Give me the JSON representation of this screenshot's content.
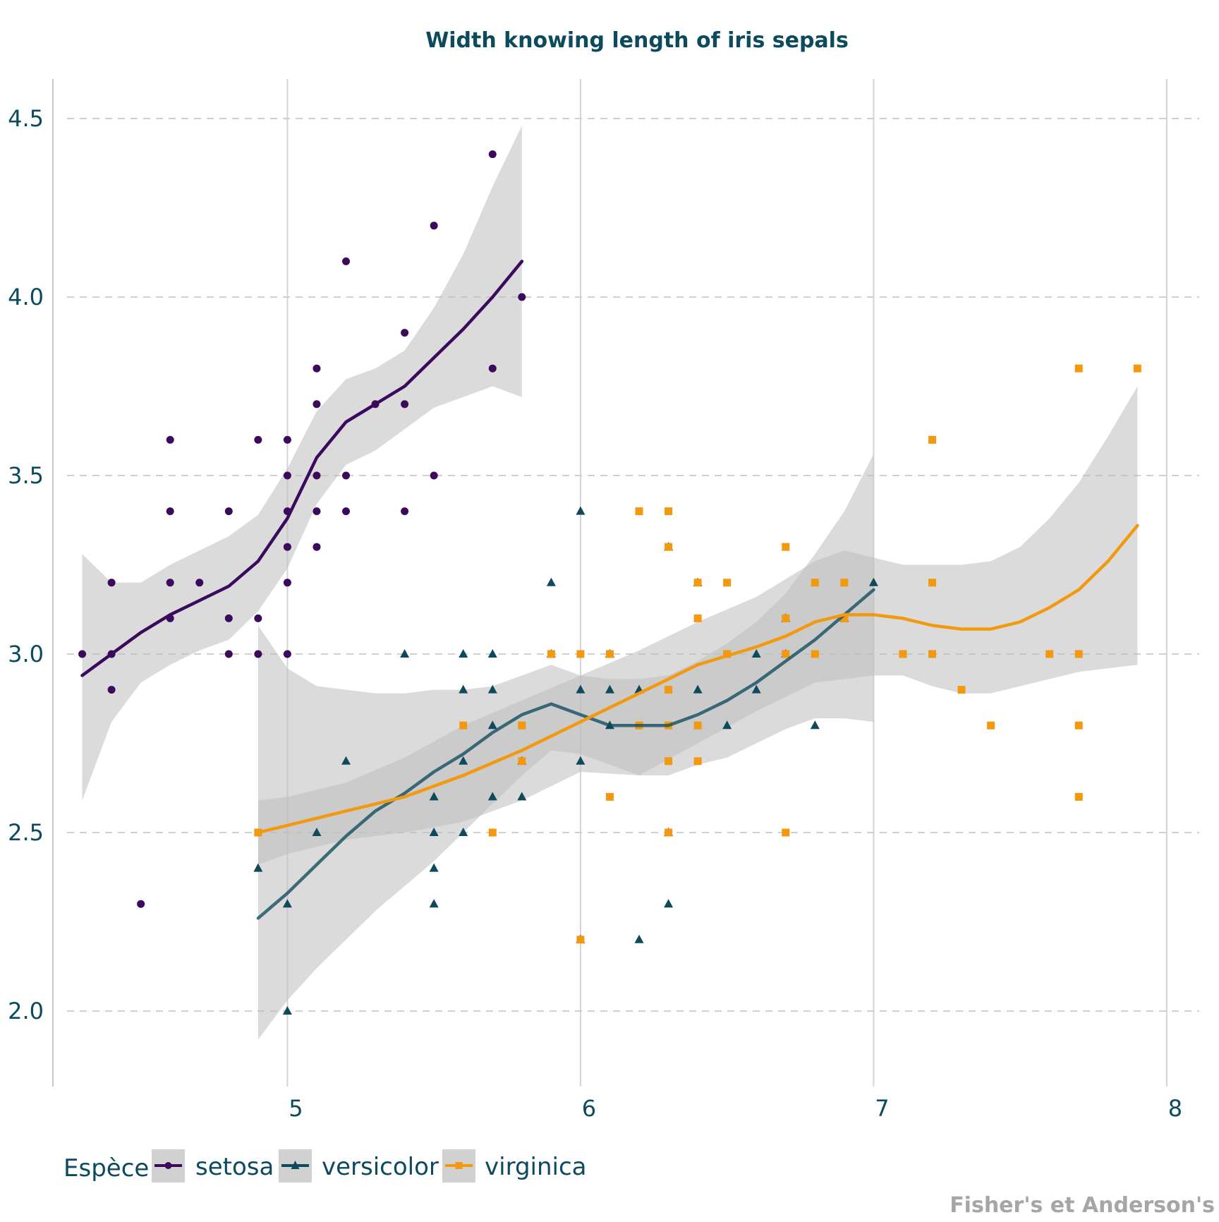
{
  "chart_data": {
    "type": "scatter",
    "title": "Width knowing length of iris sepals",
    "caption": "Fisher's et Anderson's",
    "xlabel": "",
    "ylabel": "",
    "xlim": [
      4.2,
      8.0
    ],
    "ylim": [
      1.8,
      4.6
    ],
    "x_ticks": [
      5,
      6,
      7,
      8
    ],
    "x_tick_labels": [
      "5",
      "6",
      "7",
      "8"
    ],
    "y_ticks": [
      2.0,
      2.5,
      3.0,
      3.5,
      4.0,
      4.5
    ],
    "y_tick_labels": [
      "2.0",
      "2.5",
      "3.0",
      "3.5",
      "4.0",
      "4.5"
    ],
    "grid": {
      "x": "solid",
      "y": "dashed"
    },
    "legend": {
      "title": "Espèce",
      "placement": "bottom-left",
      "entries": [
        "setosa",
        "versicolor",
        "virginica"
      ]
    },
    "colors": {
      "setosa": "#3b0a5c",
      "versicolor": "#0e4a5c",
      "virginica": "#f2990f",
      "ribbon": "#bdbdbd"
    },
    "series": [
      {
        "name": "setosa",
        "marker": "circle",
        "points": [
          [
            4.3,
            3.0
          ],
          [
            4.4,
            3.2
          ],
          [
            4.4,
            3.0
          ],
          [
            4.4,
            2.9
          ],
          [
            4.5,
            2.3
          ],
          [
            4.6,
            3.6
          ],
          [
            4.6,
            3.4
          ],
          [
            4.6,
            3.2
          ],
          [
            4.6,
            3.1
          ],
          [
            4.7,
            3.2
          ],
          [
            4.8,
            3.4
          ],
          [
            4.8,
            3.1
          ],
          [
            4.8,
            3.0
          ],
          [
            4.9,
            3.6
          ],
          [
            4.9,
            3.1
          ],
          [
            4.9,
            3.0
          ],
          [
            5.0,
            3.6
          ],
          [
            5.0,
            3.5
          ],
          [
            5.0,
            3.4
          ],
          [
            5.0,
            3.3
          ],
          [
            5.0,
            3.2
          ],
          [
            5.0,
            3.0
          ],
          [
            5.1,
            3.8
          ],
          [
            5.1,
            3.7
          ],
          [
            5.1,
            3.5
          ],
          [
            5.1,
            3.4
          ],
          [
            5.1,
            3.3
          ],
          [
            5.2,
            4.1
          ],
          [
            5.2,
            3.5
          ],
          [
            5.2,
            3.4
          ],
          [
            5.3,
            3.7
          ],
          [
            5.4,
            3.9
          ],
          [
            5.4,
            3.7
          ],
          [
            5.4,
            3.4
          ],
          [
            5.5,
            4.2
          ],
          [
            5.5,
            3.5
          ],
          [
            5.7,
            4.4
          ],
          [
            5.7,
            3.8
          ],
          [
            5.8,
            4.0
          ]
        ],
        "smooth": [
          [
            4.3,
            2.94
          ],
          [
            4.5,
            3.06
          ],
          [
            4.6,
            3.11
          ],
          [
            4.7,
            3.15
          ],
          [
            4.8,
            3.19
          ],
          [
            4.9,
            3.26
          ],
          [
            5.0,
            3.38
          ],
          [
            5.1,
            3.55
          ],
          [
            5.2,
            3.65
          ],
          [
            5.3,
            3.7
          ],
          [
            5.4,
            3.75
          ],
          [
            5.5,
            3.83
          ],
          [
            5.6,
            3.91
          ],
          [
            5.7,
            4.0
          ],
          [
            5.8,
            4.1
          ]
        ],
        "band_upper": [
          [
            4.3,
            3.28
          ],
          [
            4.4,
            3.2
          ],
          [
            4.5,
            3.2
          ],
          [
            4.6,
            3.25
          ],
          [
            4.7,
            3.29
          ],
          [
            4.8,
            3.33
          ],
          [
            4.9,
            3.39
          ],
          [
            5.0,
            3.52
          ],
          [
            5.1,
            3.68
          ],
          [
            5.2,
            3.77
          ],
          [
            5.3,
            3.8
          ],
          [
            5.4,
            3.85
          ],
          [
            5.5,
            3.97
          ],
          [
            5.6,
            4.12
          ],
          [
            5.7,
            4.31
          ],
          [
            5.8,
            4.48
          ]
        ],
        "band_lower": [
          [
            4.3,
            2.59
          ],
          [
            4.4,
            2.81
          ],
          [
            4.5,
            2.92
          ],
          [
            4.6,
            2.97
          ],
          [
            4.7,
            3.01
          ],
          [
            4.8,
            3.04
          ],
          [
            4.9,
            3.12
          ],
          [
            5.0,
            3.24
          ],
          [
            5.1,
            3.42
          ],
          [
            5.2,
            3.53
          ],
          [
            5.3,
            3.57
          ],
          [
            5.4,
            3.63
          ],
          [
            5.5,
            3.69
          ],
          [
            5.6,
            3.72
          ],
          [
            5.7,
            3.75
          ],
          [
            5.8,
            3.72
          ]
        ]
      },
      {
        "name": "versicolor",
        "marker": "triangle",
        "points": [
          [
            4.9,
            2.4
          ],
          [
            5.0,
            2.3
          ],
          [
            5.0,
            2.0
          ],
          [
            5.1,
            2.5
          ],
          [
            5.2,
            2.7
          ],
          [
            5.4,
            3.0
          ],
          [
            5.5,
            2.6
          ],
          [
            5.5,
            2.5
          ],
          [
            5.5,
            2.4
          ],
          [
            5.5,
            2.3
          ],
          [
            5.6,
            3.0
          ],
          [
            5.6,
            2.9
          ],
          [
            5.6,
            2.7
          ],
          [
            5.6,
            2.5
          ],
          [
            5.7,
            3.0
          ],
          [
            5.7,
            2.9
          ],
          [
            5.7,
            2.8
          ],
          [
            5.7,
            2.6
          ],
          [
            5.8,
            2.7
          ],
          [
            5.8,
            2.6
          ],
          [
            5.9,
            3.2
          ],
          [
            5.9,
            3.0
          ],
          [
            6.0,
            3.4
          ],
          [
            6.0,
            2.9
          ],
          [
            6.0,
            2.7
          ],
          [
            6.0,
            2.2
          ],
          [
            6.1,
            3.0
          ],
          [
            6.1,
            2.9
          ],
          [
            6.1,
            2.8
          ],
          [
            6.2,
            2.9
          ],
          [
            6.2,
            2.2
          ],
          [
            6.3,
            3.3
          ],
          [
            6.3,
            2.5
          ],
          [
            6.3,
            2.3
          ],
          [
            6.4,
            3.2
          ],
          [
            6.4,
            2.9
          ],
          [
            6.5,
            2.8
          ],
          [
            6.6,
            3.0
          ],
          [
            6.6,
            2.9
          ],
          [
            6.7,
            3.1
          ],
          [
            6.7,
            3.0
          ],
          [
            6.8,
            2.8
          ],
          [
            6.9,
            3.1
          ],
          [
            7.0,
            3.2
          ]
        ],
        "smooth": [
          [
            4.9,
            2.26
          ],
          [
            5.0,
            2.33
          ],
          [
            5.1,
            2.41
          ],
          [
            5.2,
            2.49
          ],
          [
            5.3,
            2.56
          ],
          [
            5.4,
            2.61
          ],
          [
            5.5,
            2.67
          ],
          [
            5.6,
            2.72
          ],
          [
            5.7,
            2.78
          ],
          [
            5.8,
            2.83
          ],
          [
            5.9,
            2.86
          ],
          [
            6.0,
            2.83
          ],
          [
            6.1,
            2.8
          ],
          [
            6.2,
            2.8
          ],
          [
            6.3,
            2.8
          ],
          [
            6.4,
            2.83
          ],
          [
            6.5,
            2.87
          ],
          [
            6.6,
            2.92
          ],
          [
            6.7,
            2.98
          ],
          [
            6.8,
            3.04
          ],
          [
            6.9,
            3.11
          ],
          [
            7.0,
            3.18
          ]
        ],
        "band_upper": [
          [
            4.9,
            3.08
          ],
          [
            5.0,
            2.96
          ],
          [
            5.1,
            2.91
          ],
          [
            5.2,
            2.9
          ],
          [
            5.3,
            2.89
          ],
          [
            5.4,
            2.89
          ],
          [
            5.5,
            2.9
          ],
          [
            5.6,
            2.9
          ],
          [
            5.7,
            2.91
          ],
          [
            5.8,
            2.94
          ],
          [
            5.9,
            2.97
          ],
          [
            6.0,
            2.94
          ],
          [
            6.1,
            2.93
          ],
          [
            6.2,
            2.93
          ],
          [
            6.3,
            2.94
          ],
          [
            6.4,
            2.98
          ],
          [
            6.5,
            3.03
          ],
          [
            6.6,
            3.09
          ],
          [
            6.7,
            3.17
          ],
          [
            6.8,
            3.28
          ],
          [
            6.9,
            3.4
          ],
          [
            7.0,
            3.56
          ]
        ],
        "band_lower": [
          [
            4.9,
            1.92
          ],
          [
            5.0,
            2.03
          ],
          [
            5.1,
            2.12
          ],
          [
            5.2,
            2.2
          ],
          [
            5.3,
            2.28
          ],
          [
            5.4,
            2.35
          ],
          [
            5.5,
            2.42
          ],
          [
            5.6,
            2.5
          ],
          [
            5.7,
            2.58
          ],
          [
            5.8,
            2.66
          ],
          [
            5.9,
            2.73
          ],
          [
            6.0,
            2.72
          ],
          [
            6.1,
            2.69
          ],
          [
            6.2,
            2.66
          ],
          [
            6.3,
            2.66
          ],
          [
            6.4,
            2.69
          ],
          [
            6.5,
            2.71
          ],
          [
            6.6,
            2.75
          ],
          [
            6.7,
            2.79
          ],
          [
            6.8,
            2.82
          ],
          [
            6.9,
            2.82
          ],
          [
            7.0,
            2.81
          ]
        ]
      },
      {
        "name": "virginica",
        "marker": "square",
        "points": [
          [
            4.9,
            2.5
          ],
          [
            5.6,
            2.8
          ],
          [
            5.7,
            2.5
          ],
          [
            5.8,
            2.8
          ],
          [
            5.8,
            2.7
          ],
          [
            5.9,
            3.0
          ],
          [
            6.0,
            3.0
          ],
          [
            6.0,
            2.2
          ],
          [
            6.1,
            3.0
          ],
          [
            6.1,
            2.6
          ],
          [
            6.2,
            3.4
          ],
          [
            6.2,
            2.8
          ],
          [
            6.3,
            3.4
          ],
          [
            6.3,
            3.3
          ],
          [
            6.3,
            2.9
          ],
          [
            6.3,
            2.8
          ],
          [
            6.3,
            2.7
          ],
          [
            6.3,
            2.5
          ],
          [
            6.4,
            3.2
          ],
          [
            6.4,
            3.1
          ],
          [
            6.4,
            2.8
          ],
          [
            6.4,
            2.7
          ],
          [
            6.5,
            3.2
          ],
          [
            6.5,
            3.0
          ],
          [
            6.7,
            3.3
          ],
          [
            6.7,
            3.1
          ],
          [
            6.7,
            3.0
          ],
          [
            6.7,
            2.5
          ],
          [
            6.8,
            3.2
          ],
          [
            6.8,
            3.0
          ],
          [
            6.9,
            3.2
          ],
          [
            6.9,
            3.1
          ],
          [
            7.1,
            3.0
          ],
          [
            7.2,
            3.6
          ],
          [
            7.2,
            3.2
          ],
          [
            7.2,
            3.0
          ],
          [
            7.3,
            2.9
          ],
          [
            7.4,
            2.8
          ],
          [
            7.6,
            3.0
          ],
          [
            7.7,
            3.8
          ],
          [
            7.7,
            3.0
          ],
          [
            7.7,
            2.8
          ],
          [
            7.7,
            2.6
          ],
          [
            7.9,
            3.8
          ]
        ],
        "smooth": [
          [
            4.9,
            2.5
          ],
          [
            5.0,
            2.52
          ],
          [
            5.2,
            2.56
          ],
          [
            5.4,
            2.6
          ],
          [
            5.6,
            2.66
          ],
          [
            5.8,
            2.73
          ],
          [
            6.0,
            2.81
          ],
          [
            6.2,
            2.89
          ],
          [
            6.4,
            2.97
          ],
          [
            6.6,
            3.02
          ],
          [
            6.7,
            3.05
          ],
          [
            6.8,
            3.09
          ],
          [
            6.9,
            3.11
          ],
          [
            7.0,
            3.11
          ],
          [
            7.1,
            3.1
          ],
          [
            7.2,
            3.08
          ],
          [
            7.3,
            3.07
          ],
          [
            7.4,
            3.07
          ],
          [
            7.5,
            3.09
          ],
          [
            7.6,
            3.13
          ],
          [
            7.7,
            3.18
          ],
          [
            7.8,
            3.26
          ],
          [
            7.9,
            3.36
          ]
        ],
        "band_upper": [
          [
            4.9,
            2.59
          ],
          [
            5.0,
            2.6
          ],
          [
            5.2,
            2.64
          ],
          [
            5.4,
            2.71
          ],
          [
            5.6,
            2.8
          ],
          [
            5.8,
            2.87
          ],
          [
            6.0,
            2.94
          ],
          [
            6.2,
            3.01
          ],
          [
            6.4,
            3.09
          ],
          [
            6.6,
            3.16
          ],
          [
            6.7,
            3.21
          ],
          [
            6.8,
            3.26
          ],
          [
            6.9,
            3.29
          ],
          [
            7.0,
            3.27
          ],
          [
            7.1,
            3.25
          ],
          [
            7.2,
            3.25
          ],
          [
            7.3,
            3.25
          ],
          [
            7.4,
            3.26
          ],
          [
            7.5,
            3.3
          ],
          [
            7.6,
            3.38
          ],
          [
            7.7,
            3.48
          ],
          [
            7.8,
            3.61
          ],
          [
            7.9,
            3.75
          ]
        ],
        "band_lower": [
          [
            4.9,
            2.41
          ],
          [
            5.0,
            2.44
          ],
          [
            5.2,
            2.48
          ],
          [
            5.4,
            2.5
          ],
          [
            5.6,
            2.53
          ],
          [
            5.8,
            2.59
          ],
          [
            6.0,
            2.67
          ],
          [
            6.2,
            2.66
          ],
          [
            6.4,
            2.75
          ],
          [
            6.6,
            2.84
          ],
          [
            6.7,
            2.88
          ],
          [
            6.8,
            2.92
          ],
          [
            6.9,
            2.93
          ],
          [
            7.0,
            2.94
          ],
          [
            7.1,
            2.94
          ],
          [
            7.2,
            2.91
          ],
          [
            7.3,
            2.89
          ],
          [
            7.4,
            2.89
          ],
          [
            7.5,
            2.91
          ],
          [
            7.6,
            2.93
          ],
          [
            7.7,
            2.95
          ],
          [
            7.8,
            2.96
          ],
          [
            7.9,
            2.97
          ]
        ]
      }
    ]
  }
}
